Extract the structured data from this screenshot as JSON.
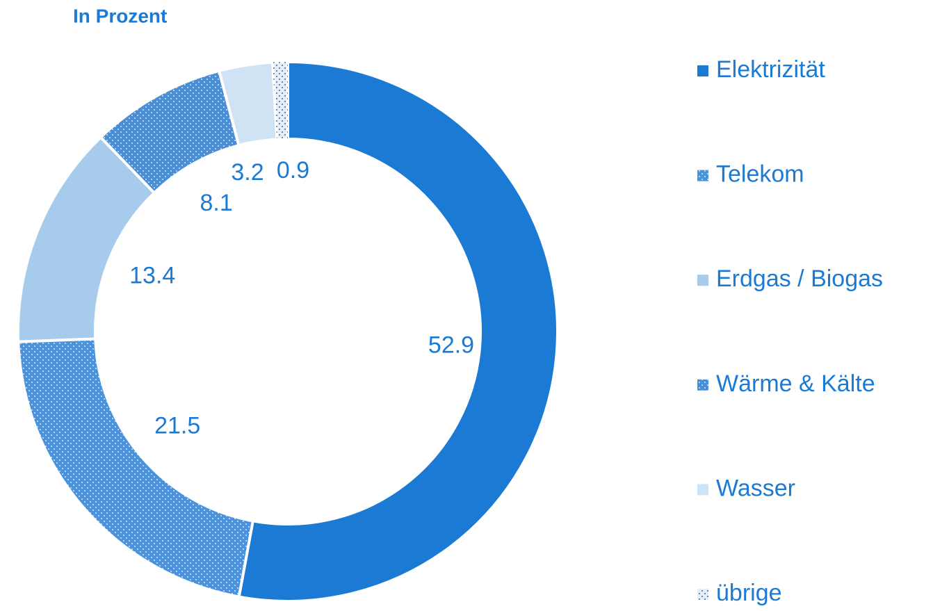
{
  "chart_data": {
    "type": "donut",
    "title": "In Prozent",
    "categories": [
      "Elektrizität",
      "Telekom",
      "Erdgas / Biogas",
      "Wärme & Kälte",
      "Wasser",
      "übrige"
    ],
    "values": [
      52.9,
      21.5,
      13.4,
      8.1,
      3.2,
      0.9
    ],
    "colors": [
      "#1a7ad4",
      "#4a93dc",
      "#a6cbec",
      "#4a8fd6",
      "#d0e3f5",
      "#e3eef9"
    ],
    "dotted": [
      false,
      true,
      false,
      true,
      false,
      true
    ],
    "legend": "right"
  }
}
